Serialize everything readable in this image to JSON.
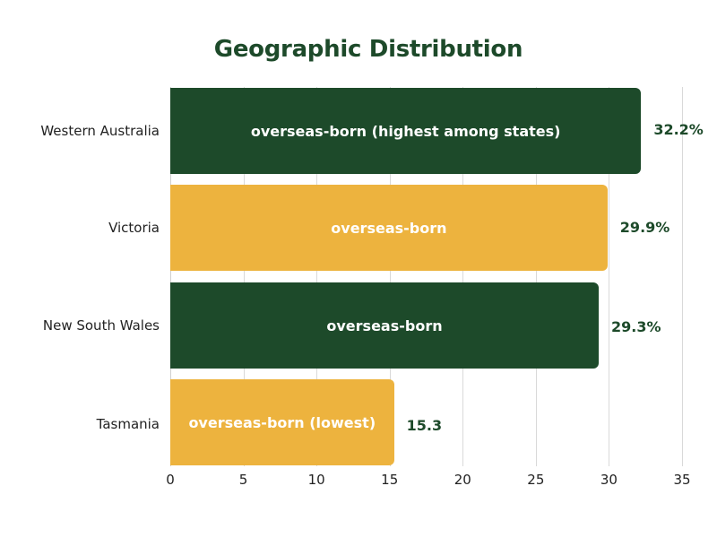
{
  "chart_data": {
    "type": "bar",
    "orientation": "horizontal",
    "title": "Geographic Distribution",
    "xlabel": "",
    "ylabel": "",
    "xlim": [
      0,
      35
    ],
    "grid": true,
    "x_ticks": [
      "0",
      "5",
      "10",
      "15",
      "20",
      "25",
      "30",
      "35"
    ],
    "categories": [
      "Western Australia",
      "Victoria",
      "New South Wales",
      "Tasmania"
    ],
    "values": [
      32.2,
      29.9,
      29.3,
      15.3
    ],
    "bar_labels": [
      "overseas-born (highest among states)",
      "overseas-born",
      "overseas-born",
      "overseas-born (lowest)"
    ],
    "value_labels": [
      "32.2%",
      "29.9%",
      "29.3%",
      "15.3"
    ],
    "bar_colors": [
      "#1d4a2a",
      "#edb33e",
      "#1d4a2a",
      "#edb33e"
    ]
  },
  "colors": {
    "title": "#1d4a2a",
    "value_text": "#1d4a2a",
    "dark_green": "#1d4a2a",
    "gold": "#edb33e",
    "grid": "#d9d9d9"
  }
}
